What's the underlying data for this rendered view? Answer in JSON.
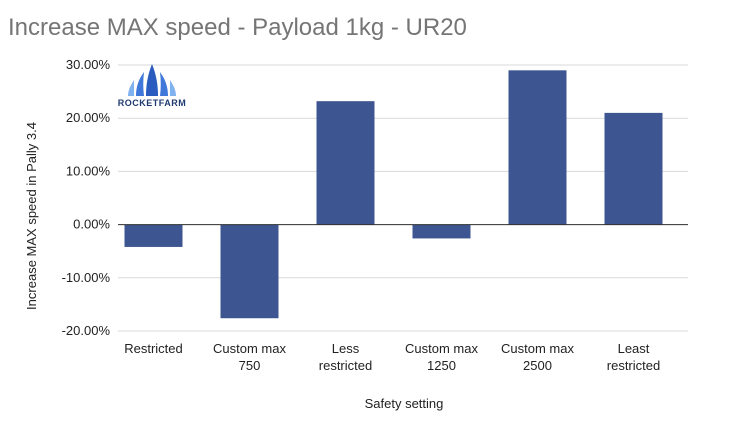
{
  "chart_data": {
    "type": "bar",
    "title": "Increase MAX speed - Payload 1kg - UR20",
    "xlabel": "Safety setting",
    "ylabel": "Increase MAX speed in Pally 3.4",
    "categories": [
      [
        "Restricted"
      ],
      [
        "Custom max",
        "750"
      ],
      [
        "Less",
        "restricted"
      ],
      [
        "Custom max",
        "1250"
      ],
      [
        "Custom max",
        "2500"
      ],
      [
        "Least",
        "restricted"
      ]
    ],
    "values": [
      -4.2,
      -17.6,
      23.2,
      -2.6,
      29.0,
      21.0
    ],
    "ylim": [
      -20,
      30
    ],
    "yticks": [
      -20,
      -10,
      0,
      10,
      20,
      30
    ],
    "ytick_labels": [
      "-20.00%",
      "-10.00%",
      "0.00%",
      "10.00%",
      "20.00%",
      "30.00%"
    ],
    "grid": true,
    "bar_color": "#3d5590",
    "legend": "none"
  },
  "logo": {
    "text": "ROCKETFARM",
    "color": "#1f3a70",
    "icon": "rocketfarm-logo-icon"
  }
}
